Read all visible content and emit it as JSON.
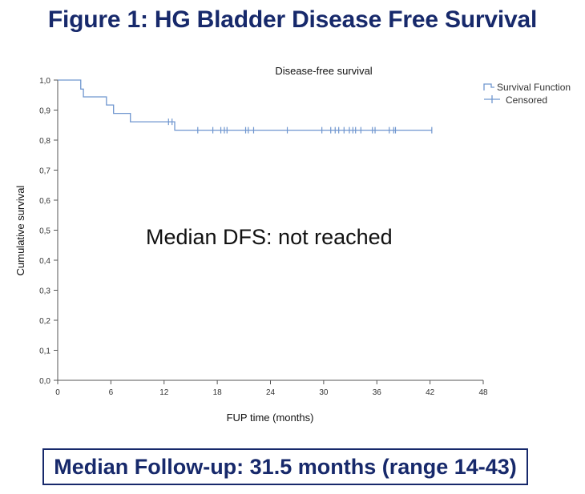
{
  "figure_title": "Figure 1: HG Bladder Disease Free Survival",
  "annotation": "Median DFS: not reached",
  "footer": "Median Follow-up: 31.5 months (range 14-43)",
  "colors": {
    "title": "#17296b",
    "curve": "#6f96cf",
    "axis": "#555555"
  },
  "chart_data": {
    "type": "line",
    "title": "Disease-free survival",
    "xlabel": "FUP time (months)",
    "ylabel": "Cumulative survival",
    "xlim": [
      0,
      48
    ],
    "ylim": [
      0,
      1
    ],
    "xticks": [
      "0",
      "6",
      "12",
      "18",
      "24",
      "30",
      "36",
      "42",
      "48"
    ],
    "yticks": [
      "0,0",
      "0,1",
      "0,2",
      "0,3",
      "0,4",
      "0,5",
      "0,6",
      "0,7",
      "0,8",
      "0,9",
      "1,0"
    ],
    "legend": {
      "position": "top-right",
      "entries": [
        "Survival Function",
        "Censored"
      ]
    },
    "series": [
      {
        "name": "Survival Function",
        "steps": [
          [
            0,
            1.0
          ],
          [
            2.6,
            0.97
          ],
          [
            2.9,
            0.944
          ],
          [
            5.5,
            0.917
          ],
          [
            6.3,
            0.889
          ],
          [
            8.2,
            0.861
          ],
          [
            13.2,
            0.833
          ],
          [
            42.2,
            0.833
          ]
        ]
      },
      {
        "name": "Censored",
        "points": [
          [
            12.5,
            0.861
          ],
          [
            12.9,
            0.861
          ],
          [
            15.8,
            0.833
          ],
          [
            17.5,
            0.833
          ],
          [
            18.4,
            0.833
          ],
          [
            18.8,
            0.833
          ],
          [
            19.1,
            0.833
          ],
          [
            21.2,
            0.833
          ],
          [
            21.5,
            0.833
          ],
          [
            22.1,
            0.833
          ],
          [
            25.9,
            0.833
          ],
          [
            29.8,
            0.833
          ],
          [
            30.8,
            0.833
          ],
          [
            31.3,
            0.833
          ],
          [
            31.7,
            0.833
          ],
          [
            32.3,
            0.833
          ],
          [
            32.9,
            0.833
          ],
          [
            33.3,
            0.833
          ],
          [
            33.6,
            0.833
          ],
          [
            34.2,
            0.833
          ],
          [
            35.5,
            0.833
          ],
          [
            35.8,
            0.833
          ],
          [
            37.4,
            0.833
          ],
          [
            37.9,
            0.833
          ],
          [
            38.1,
            0.833
          ],
          [
            42.2,
            0.833
          ]
        ]
      }
    ]
  }
}
